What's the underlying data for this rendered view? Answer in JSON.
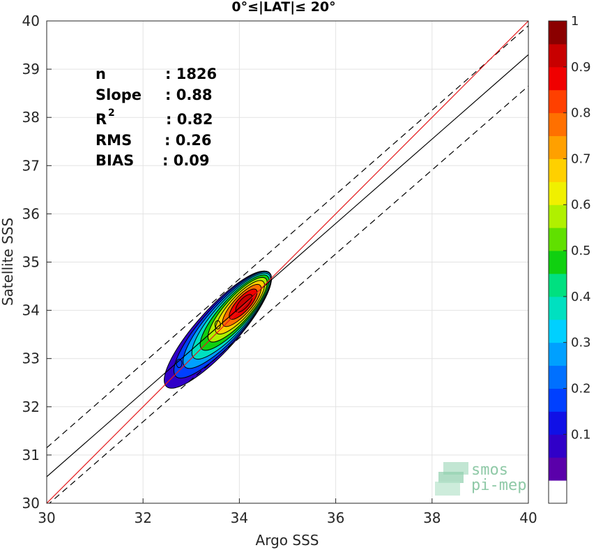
{
  "chart_data": {
    "type": "scatter",
    "subtype": "density contour",
    "title": "0°≤|LAT|≤ 20°",
    "xlabel": "Argo SSS",
    "ylabel": "Satellite SSS",
    "xlim": [
      30,
      40
    ],
    "ylim": [
      30,
      40
    ],
    "xticks": [
      "30",
      "32",
      "34",
      "36",
      "38",
      "40"
    ],
    "yticks": [
      "30",
      "31",
      "32",
      "33",
      "34",
      "35",
      "36",
      "37",
      "38",
      "39",
      "40"
    ],
    "grid": true,
    "stats": [
      {
        "label": "n",
        "value": ": 1826"
      },
      {
        "label": "Slope",
        "value": ": 0.88"
      },
      {
        "label": "R",
        "sup": "2",
        "value": ": 0.82"
      },
      {
        "label": "RMS",
        "value": ": 0.26"
      },
      {
        "label": "BIAS",
        "value": ": 0.09"
      }
    ],
    "identity_line": {
      "color": "#e41a1c",
      "points": [
        [
          30,
          30
        ],
        [
          40,
          40
        ]
      ]
    },
    "regression_line": {
      "color": "#000000",
      "points": [
        [
          30,
          30.55
        ],
        [
          40,
          39.3
        ]
      ]
    },
    "bounds_upper": {
      "points": [
        [
          30,
          31.15
        ],
        [
          40,
          39.9
        ]
      ]
    },
    "bounds_lower": {
      "points": [
        [
          30,
          29.95
        ],
        [
          40,
          38.65
        ]
      ]
    },
    "density_peak": {
      "x": 34.1,
      "y": 34.15
    },
    "secondary_peaks": [
      {
        "x": 33.55,
        "y": 33.7
      },
      {
        "x": 32.75,
        "y": 32.9
      }
    ],
    "colorbar": {
      "ticks": [
        "0.1",
        "0.2",
        "0.3",
        "0.4",
        "0.5",
        "0.6",
        "0.7",
        "0.8",
        "0.9",
        "1"
      ],
      "range": [
        0,
        1
      ],
      "colors": [
        "#ffffff",
        "#5a00aa",
        "#3000c8",
        "#1010e6",
        "#0040ff",
        "#0070ff",
        "#00a0ff",
        "#00d0ff",
        "#00e0c0",
        "#00e080",
        "#10d010",
        "#60e000",
        "#b0f000",
        "#f0f000",
        "#ffd000",
        "#ffa000",
        "#ff7000",
        "#ff4000",
        "#f00000",
        "#c80000",
        "#8b0000"
      ]
    },
    "levels": [
      {
        "level": 0.05,
        "color": "#3000c8"
      },
      {
        "level": 0.15,
        "color": "#0040ff"
      },
      {
        "level": 0.25,
        "color": "#00a0ff"
      },
      {
        "level": 0.35,
        "color": "#00e0c0"
      },
      {
        "level": 0.45,
        "color": "#10d010"
      },
      {
        "level": 0.55,
        "color": "#b0f000"
      },
      {
        "level": 0.65,
        "color": "#ffd000"
      },
      {
        "level": 0.75,
        "color": "#ff7000"
      },
      {
        "level": 0.85,
        "color": "#f00000"
      },
      {
        "level": 0.95,
        "color": "#c80000"
      }
    ]
  },
  "logo": {
    "line1": "smos",
    "line2": "pi-mep"
  }
}
